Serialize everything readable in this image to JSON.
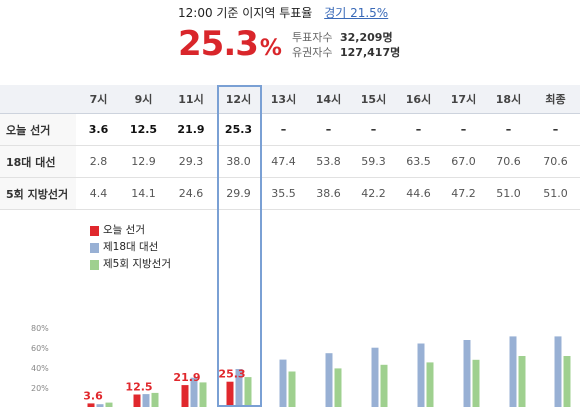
{
  "header": {
    "title": "12:00 기준 이지역 투표율",
    "region_link": "경기 21.5%",
    "turnout_value": "25.3",
    "turnout_unit": "%",
    "voters_label": "투표자수",
    "voters_value": "32,209명",
    "eligible_label": "유권자수",
    "eligible_value": "127,417명"
  },
  "table": {
    "hours": [
      "7시",
      "9시",
      "11시",
      "12시",
      "13시",
      "14시",
      "15시",
      "16시",
      "17시",
      "18시",
      "최종"
    ],
    "rows": [
      {
        "label": "오늘 선거",
        "values": [
          "3.6",
          "12.5",
          "21.9",
          "25.3",
          "–",
          "–",
          "–",
          "–",
          "–",
          "–",
          "–"
        ]
      },
      {
        "label": "18대 대선",
        "values": [
          "2.8",
          "12.9",
          "29.3",
          "38.0",
          "47.4",
          "53.8",
          "59.3",
          "63.5",
          "67.0",
          "70.6",
          "70.6"
        ]
      },
      {
        "label": "5회 지방선거",
        "values": [
          "4.4",
          "14.1",
          "24.6",
          "29.9",
          "35.5",
          "38.6",
          "42.2",
          "44.6",
          "47.2",
          "51.0",
          "51.0"
        ]
      }
    ]
  },
  "colors": {
    "today": "#e0282d",
    "prev_presidential": "#98b0d4",
    "prev_local": "#9fd08f",
    "highlight": "#7aa0d4"
  },
  "chart_data": {
    "type": "bar",
    "categories": [
      "7시",
      "9시",
      "11시",
      "12시",
      "13시",
      "14시",
      "15시",
      "16시",
      "17시",
      "18시",
      "최종"
    ],
    "series": [
      {
        "name": "오늘 선거",
        "values": [
          3.6,
          12.5,
          21.9,
          25.3,
          null,
          null,
          null,
          null,
          null,
          null,
          null
        ]
      },
      {
        "name": "제18대 대선",
        "values": [
          2.8,
          12.9,
          29.3,
          38.0,
          47.4,
          53.8,
          59.3,
          63.5,
          67.0,
          70.6,
          70.6
        ]
      },
      {
        "name": "제5회 지방선거",
        "values": [
          4.4,
          14.1,
          24.6,
          29.9,
          35.5,
          38.6,
          42.2,
          44.6,
          47.2,
          51.0,
          51.0
        ]
      }
    ],
    "yticks": [
      "20%",
      "40%",
      "60%",
      "80%"
    ],
    "ylim": [
      0,
      100
    ],
    "data_labels": [
      "3.6",
      "12.5",
      "21.9",
      "25.3"
    ],
    "legend_placement": "top-left"
  }
}
